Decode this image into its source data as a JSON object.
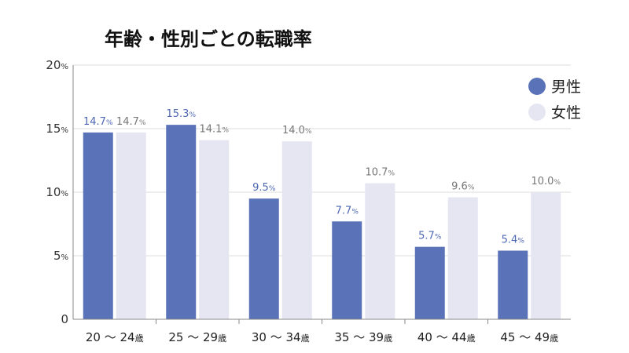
{
  "chart_data": {
    "type": "bar",
    "title": "年齢・性別ごとの転職率",
    "categories": [
      "20 〜 24歳",
      "25 〜 29歳",
      "30 〜 34歳",
      "35 〜 39歳",
      "40 〜 44歳",
      "45 〜 49歳"
    ],
    "category_parts": [
      {
        "num": "20 〜 24",
        "unit": "歳"
      },
      {
        "num": "25 〜 29",
        "unit": "歳"
      },
      {
        "num": "30 〜 34",
        "unit": "歳"
      },
      {
        "num": "35 〜 39",
        "unit": "歳"
      },
      {
        "num": "40 〜 44",
        "unit": "歳"
      },
      {
        "num": "45 〜 49",
        "unit": "歳"
      }
    ],
    "series": [
      {
        "name": "男性",
        "values": [
          14.7,
          15.3,
          9.5,
          7.7,
          5.7,
          5.4
        ],
        "labels": [
          "14.7",
          "15.3",
          "9.5",
          "7.7",
          "5.7",
          "5.4"
        ],
        "color": "#5a72b8",
        "label_color": "#4d67b3"
      },
      {
        "name": "女性",
        "values": [
          14.7,
          14.1,
          14.0,
          10.7,
          9.6,
          10.0
        ],
        "labels": [
          "14.7",
          "14.1",
          "14.0",
          "10.7",
          "9.6",
          "10.0"
        ],
        "color": "#e6e6f2",
        "label_color": "#777777"
      }
    ],
    "unit": "%",
    "ylim": [
      0,
      20
    ],
    "yticks": [
      {
        "value": 0,
        "label": "0",
        "unit": ""
      },
      {
        "value": 5,
        "label": "5",
        "unit": "%"
      },
      {
        "value": 10,
        "label": "10",
        "unit": "%"
      },
      {
        "value": 15,
        "label": "15",
        "unit": "%"
      },
      {
        "value": 20,
        "label": "20",
        "unit": "%"
      }
    ],
    "grid": true,
    "legend_position": "top-right"
  }
}
